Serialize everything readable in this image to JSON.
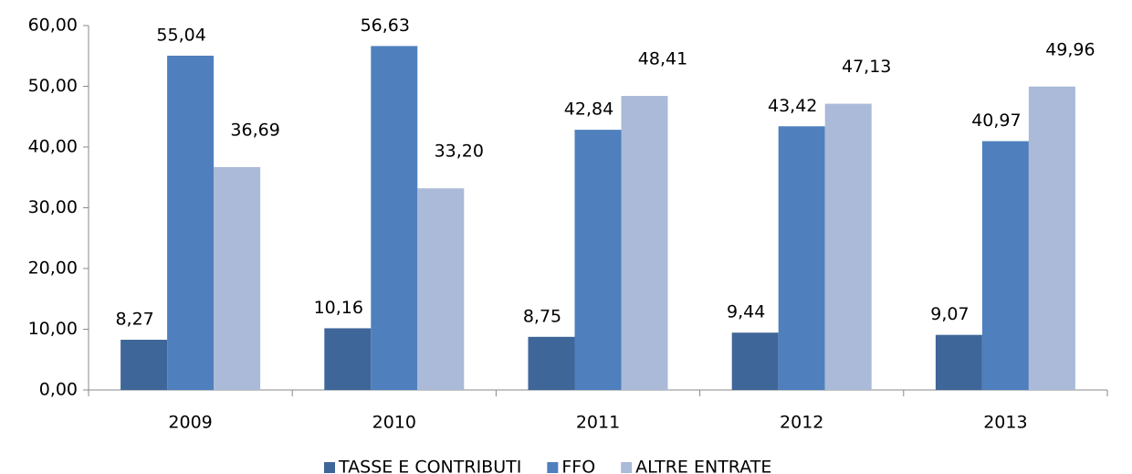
{
  "chart_data": {
    "type": "bar",
    "categories": [
      "2009",
      "2010",
      "2011",
      "2012",
      "2013"
    ],
    "series": [
      {
        "name": "TASSE E CONTRIBUTI",
        "color": "#3f6699",
        "values": [
          8.27,
          10.16,
          8.75,
          9.44,
          9.07
        ],
        "value_labels": [
          "8,27",
          "10,16",
          "8,75",
          "9,44",
          "9,07"
        ]
      },
      {
        "name": "FFO",
        "color": "#4f80bd",
        "values": [
          55.04,
          56.63,
          42.84,
          43.42,
          40.97
        ],
        "value_labels": [
          "55,04",
          "56,63",
          "42,84",
          "43,42",
          "40,97"
        ]
      },
      {
        "name": "ALTRE ENTRATE",
        "color": "#aabad8",
        "values": [
          36.69,
          33.2,
          48.41,
          47.13,
          49.96
        ],
        "value_labels": [
          "36,69",
          "33,20",
          "48,41",
          "47,13",
          "49,96"
        ]
      }
    ],
    "ylim": [
      0,
      60
    ],
    "yticks": [
      {
        "value": 0,
        "label": "0,00"
      },
      {
        "value": 10,
        "label": "10,00"
      },
      {
        "value": 20,
        "label": "20,00"
      },
      {
        "value": 30,
        "label": "30,00"
      },
      {
        "value": 40,
        "label": "40,00"
      },
      {
        "value": 50,
        "label": "50,00"
      },
      {
        "value": 60,
        "label": "60,00"
      }
    ],
    "legend": "bottom"
  }
}
